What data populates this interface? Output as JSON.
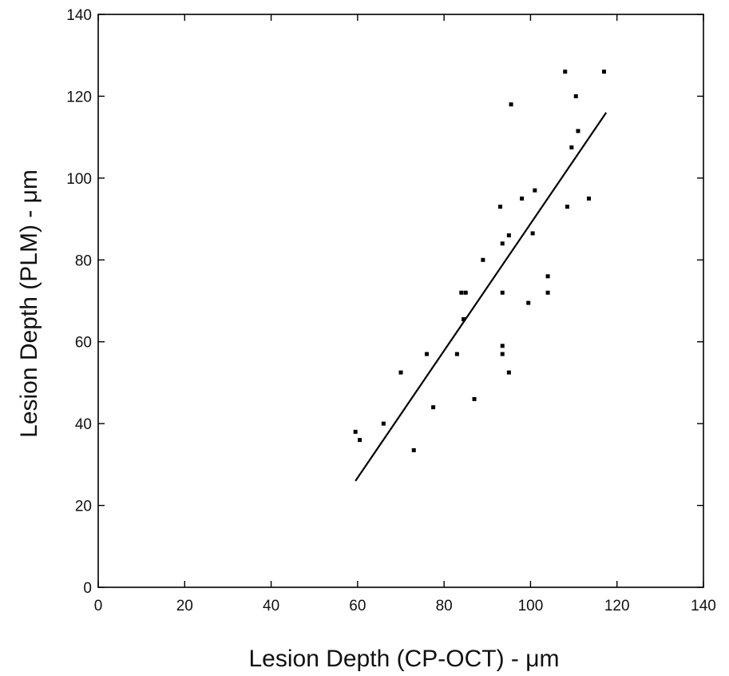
{
  "chart_data": {
    "type": "scatter",
    "title": "",
    "xlabel": "Lesion Depth (CP-OCT) - μm",
    "ylabel": "Lesion Depth (PLM) - μm",
    "xlim": [
      0,
      140
    ],
    "ylim": [
      0,
      140
    ],
    "xticks": [
      "0",
      "20",
      "40",
      "60",
      "80",
      "100",
      "120",
      "140"
    ],
    "yticks": [
      "0",
      "20",
      "40",
      "60",
      "80",
      "100",
      "120",
      "140"
    ],
    "grid": false,
    "legend": "none",
    "series": [
      {
        "points": [
          [
            59.5,
            38
          ],
          [
            60.5,
            36
          ],
          [
            66,
            40
          ],
          [
            70,
            52.5
          ],
          [
            73,
            33.5
          ],
          [
            76,
            57
          ],
          [
            77.5,
            44
          ],
          [
            83,
            57
          ],
          [
            84,
            72
          ],
          [
            84.5,
            65.5
          ],
          [
            85,
            72
          ],
          [
            87,
            46
          ],
          [
            89,
            80
          ],
          [
            93,
            93
          ],
          [
            93.5,
            84
          ],
          [
            93.5,
            72
          ],
          [
            93.5,
            59
          ],
          [
            93.5,
            57
          ],
          [
            95,
            86
          ],
          [
            95,
            52.5
          ],
          [
            95.5,
            118
          ],
          [
            98,
            95
          ],
          [
            99.5,
            69.5
          ],
          [
            100.5,
            86.5
          ],
          [
            101,
            97
          ],
          [
            104,
            76
          ],
          [
            104,
            72
          ],
          [
            108,
            126
          ],
          [
            108.5,
            93
          ],
          [
            109.5,
            107.5
          ],
          [
            110.5,
            120
          ],
          [
            111,
            111.5
          ],
          [
            113.5,
            95
          ],
          [
            117,
            126
          ]
        ],
        "color": "#000000"
      }
    ],
    "fit_line": {
      "x": [
        59.5,
        117.5
      ],
      "y": [
        26,
        116
      ]
    }
  }
}
